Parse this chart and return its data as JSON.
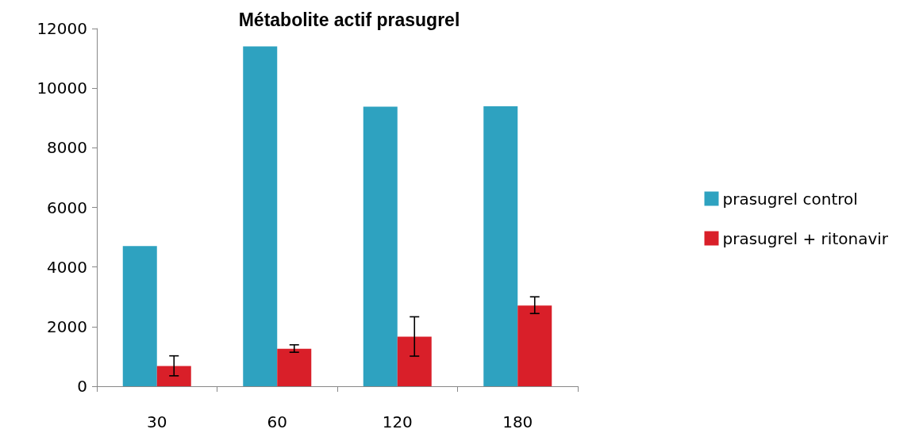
{
  "chart_data": {
    "type": "bar",
    "title": "Métabolite actif prasugrel",
    "categories": [
      "30",
      "60",
      "120",
      "180"
    ],
    "series": [
      {
        "name": "prasugrel control",
        "color": "#2ea2c0",
        "values": [
          4700,
          11400,
          9380,
          9390
        ]
      },
      {
        "name": "prasugrel + ritonavir",
        "color": "#d91f29",
        "values": [
          680,
          1260,
          1660,
          2710
        ],
        "errors": [
          [
            350,
            1020
          ],
          [
            1140,
            1390
          ],
          [
            1010,
            2330
          ],
          [
            2440,
            3000
          ]
        ]
      }
    ],
    "ylim": [
      0,
      12000
    ],
    "yticks": [
      0,
      2000,
      4000,
      6000,
      8000,
      10000,
      12000
    ],
    "grid": false,
    "legend": "right"
  }
}
